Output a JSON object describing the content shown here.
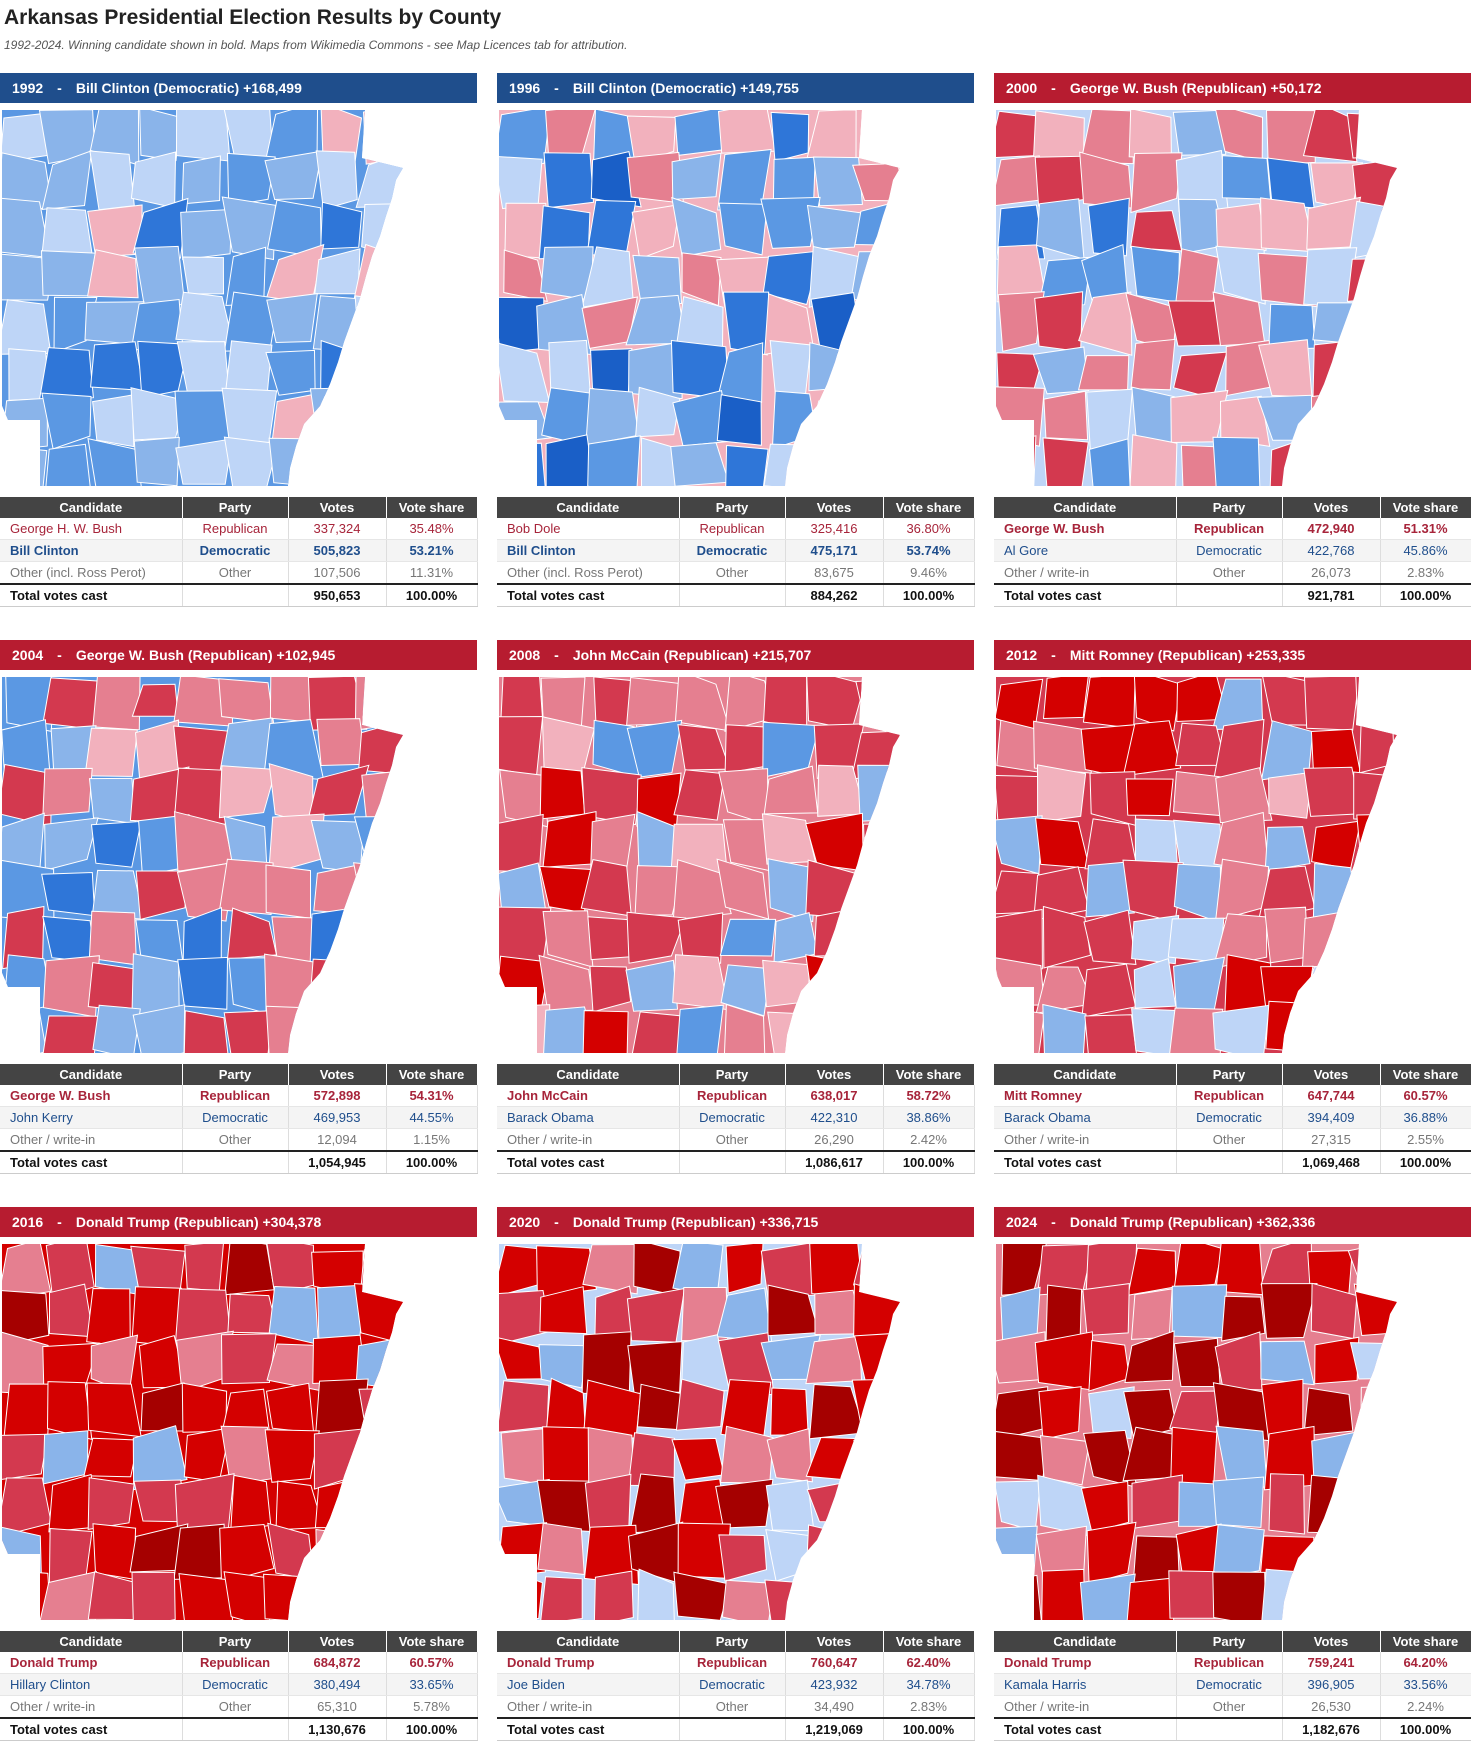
{
  "header": {
    "title": "Arkansas Presidential Election Results by County",
    "subtitle": "1992-2024. Winning candidate shown in bold. Maps from Wikimedia Commons - see Map Licences tab for attribution."
  },
  "table_headers": {
    "candidate": "Candidate",
    "party": "Party",
    "votes": "Votes",
    "share": "Vote share"
  },
  "colors": {
    "dem_banner": "#1f4e8c",
    "rep_banner": "#b71c30",
    "d1": "#bed5f7",
    "d2": "#8ab4ea",
    "d3": "#5b98e3",
    "d4": "#2f76d8",
    "d5": "#1a5fc7",
    "r1": "#f2b1bd",
    "r2": "#e57f90",
    "r3": "#d3394f",
    "r4": "#d40000",
    "r5": "#a50000"
  },
  "elections": [
    {
      "year": "1992",
      "winner": "Bill Clinton (Democratic)",
      "margin": "+168,499",
      "party": "dem",
      "map_weights": {
        "d1": 3,
        "d2": 3,
        "d3": 2,
        "d4": 1,
        "d5": 0,
        "r1": 1,
        "r2": 0,
        "r3": 0,
        "r4": 0,
        "r5": 0
      },
      "rows": [
        {
          "candidate": "George H. W. Bush",
          "party": "Republican",
          "votes": "337,324",
          "share": "35.48%",
          "kind": "rep",
          "win": false
        },
        {
          "candidate": "Bill Clinton",
          "party": "Democratic",
          "votes": "505,823",
          "share": "53.21%",
          "kind": "dem",
          "win": true
        },
        {
          "candidate": "Other (incl. Ross Perot)",
          "party": "Other",
          "votes": "107,506",
          "share": "11.31%",
          "kind": "oth",
          "win": false
        }
      ],
      "total": {
        "label": "Total votes cast",
        "votes": "950,653",
        "share": "100.00%"
      }
    },
    {
      "year": "1996",
      "winner": "Bill Clinton (Democratic)",
      "margin": "+149,755",
      "party": "dem",
      "map_weights": {
        "d1": 2,
        "d2": 3,
        "d3": 3,
        "d4": 2,
        "d5": 1,
        "r1": 1,
        "r2": 1,
        "r3": 0,
        "r4": 0,
        "r5": 0
      },
      "rows": [
        {
          "candidate": "Bob Dole",
          "party": "Republican",
          "votes": "325,416",
          "share": "36.80%",
          "kind": "rep",
          "win": false
        },
        {
          "candidate": "Bill Clinton",
          "party": "Democratic",
          "votes": "475,171",
          "share": "53.74%",
          "kind": "dem",
          "win": true
        },
        {
          "candidate": "Other (incl. Ross Perot)",
          "party": "Other",
          "votes": "83,675",
          "share": "9.46%",
          "kind": "oth",
          "win": false
        }
      ],
      "total": {
        "label": "Total votes cast",
        "votes": "884,262",
        "share": "100.00%"
      }
    },
    {
      "year": "2000",
      "winner": "George W. Bush (Republican)",
      "margin": "+50,172",
      "party": "rep",
      "map_weights": {
        "d1": 1,
        "d2": 2,
        "d3": 1,
        "d4": 1,
        "d5": 0,
        "r1": 2,
        "r2": 3,
        "r3": 3,
        "r4": 0,
        "r5": 0
      },
      "rows": [
        {
          "candidate": "George W. Bush",
          "party": "Republican",
          "votes": "472,940",
          "share": "51.31%",
          "kind": "rep",
          "win": true
        },
        {
          "candidate": "Al Gore",
          "party": "Democratic",
          "votes": "422,768",
          "share": "45.86%",
          "kind": "dem",
          "win": false
        },
        {
          "candidate": "Other / write-in",
          "party": "Other",
          "votes": "26,073",
          "share": "2.83%",
          "kind": "oth",
          "win": false
        }
      ],
      "total": {
        "label": "Total votes cast",
        "votes": "921,781",
        "share": "100.00%"
      }
    },
    {
      "year": "2004",
      "winner": "George W. Bush (Republican)",
      "margin": "+102,945",
      "party": "rep",
      "map_weights": {
        "d1": 0,
        "d2": 2,
        "d3": 2,
        "d4": 1,
        "d5": 0,
        "r1": 1,
        "r2": 4,
        "r3": 3,
        "r4": 0,
        "r5": 0
      },
      "rows": [
        {
          "candidate": "George W. Bush",
          "party": "Republican",
          "votes": "572,898",
          "share": "54.31%",
          "kind": "rep",
          "win": true
        },
        {
          "candidate": "John Kerry",
          "party": "Democratic",
          "votes": "469,953",
          "share": "44.55%",
          "kind": "dem",
          "win": false
        },
        {
          "candidate": "Other / write-in",
          "party": "Other",
          "votes": "12,094",
          "share": "1.15%",
          "kind": "oth",
          "win": false
        }
      ],
      "total": {
        "label": "Total votes cast",
        "votes": "1,054,945",
        "share": "100.00%"
      }
    },
    {
      "year": "2008",
      "winner": "John McCain (Republican)",
      "margin": "+215,707",
      "party": "rep",
      "map_weights": {
        "d1": 0,
        "d2": 2,
        "d3": 1,
        "d4": 0,
        "d5": 0,
        "r1": 1,
        "r2": 3,
        "r3": 5,
        "r4": 2,
        "r5": 0
      },
      "rows": [
        {
          "candidate": "John McCain",
          "party": "Republican",
          "votes": "638,017",
          "share": "58.72%",
          "kind": "rep",
          "win": true
        },
        {
          "candidate": "Barack Obama",
          "party": "Democratic",
          "votes": "422,310",
          "share": "38.86%",
          "kind": "dem",
          "win": false
        },
        {
          "candidate": "Other / write-in",
          "party": "Other",
          "votes": "26,290",
          "share": "2.42%",
          "kind": "oth",
          "win": false
        }
      ],
      "total": {
        "label": "Total votes cast",
        "votes": "1,086,617",
        "share": "100.00%"
      }
    },
    {
      "year": "2012",
      "winner": "Mitt Romney (Republican)",
      "margin": "+253,335",
      "party": "rep",
      "map_weights": {
        "d1": 1,
        "d2": 2,
        "d3": 1,
        "d4": 0,
        "d5": 0,
        "r1": 1,
        "r2": 2,
        "r3": 5,
        "r4": 3,
        "r5": 0
      },
      "rows": [
        {
          "candidate": "Mitt Romney",
          "party": "Republican",
          "votes": "647,744",
          "share": "60.57%",
          "kind": "rep",
          "win": true
        },
        {
          "candidate": "Barack Obama",
          "party": "Democratic",
          "votes": "394,409",
          "share": "36.88%",
          "kind": "dem",
          "win": false
        },
        {
          "candidate": "Other / write-in",
          "party": "Other",
          "votes": "27,315",
          "share": "2.55%",
          "kind": "oth",
          "win": false
        }
      ],
      "total": {
        "label": "Total votes cast",
        "votes": "1,069,468",
        "share": "100.00%"
      }
    },
    {
      "year": "2016",
      "winner": "Donald Trump (Republican)",
      "margin": "+304,378",
      "party": "rep",
      "map_weights": {
        "d1": 0,
        "d2": 2,
        "d3": 1,
        "d4": 0,
        "d5": 0,
        "r1": 0,
        "r2": 2,
        "r3": 4,
        "r4": 6,
        "r5": 1
      },
      "rows": [
        {
          "candidate": "Donald Trump",
          "party": "Republican",
          "votes": "684,872",
          "share": "60.57%",
          "kind": "rep",
          "win": true
        },
        {
          "candidate": "Hillary Clinton",
          "party": "Democratic",
          "votes": "380,494",
          "share": "33.65%",
          "kind": "dem",
          "win": false
        },
        {
          "candidate": "Other / write-in",
          "party": "Other",
          "votes": "65,310",
          "share": "5.78%",
          "kind": "oth",
          "win": false
        }
      ],
      "total": {
        "label": "Total votes cast",
        "votes": "1,130,676",
        "share": "100.00%"
      }
    },
    {
      "year": "2020",
      "winner": "Donald Trump (Republican)",
      "margin": "+336,715",
      "party": "rep",
      "map_weights": {
        "d1": 1,
        "d2": 2,
        "d3": 0,
        "d4": 0,
        "d5": 0,
        "r1": 0,
        "r2": 2,
        "r3": 4,
        "r4": 6,
        "r5": 2
      },
      "rows": [
        {
          "candidate": "Donald Trump",
          "party": "Republican",
          "votes": "760,647",
          "share": "62.40%",
          "kind": "rep",
          "win": true
        },
        {
          "candidate": "Joe Biden",
          "party": "Democratic",
          "votes": "423,932",
          "share": "34.78%",
          "kind": "dem",
          "win": false
        },
        {
          "candidate": "Other / write-in",
          "party": "Other",
          "votes": "34,490",
          "share": "2.83%",
          "kind": "oth",
          "win": false
        }
      ],
      "total": {
        "label": "Total votes cast",
        "votes": "1,219,069",
        "share": "100.00%"
      }
    },
    {
      "year": "2024",
      "winner": "Donald Trump (Republican)",
      "margin": "+362,336",
      "party": "rep",
      "map_weights": {
        "d1": 1,
        "d2": 2,
        "d3": 0,
        "d4": 0,
        "d5": 0,
        "r1": 0,
        "r2": 1,
        "r3": 3,
        "r4": 6,
        "r5": 4
      },
      "rows": [
        {
          "candidate": "Donald Trump",
          "party": "Republican",
          "votes": "759,241",
          "share": "64.20%",
          "kind": "rep",
          "win": true
        },
        {
          "candidate": "Kamala Harris",
          "party": "Democratic",
          "votes": "396,905",
          "share": "33.56%",
          "kind": "dem",
          "win": false
        },
        {
          "candidate": "Other / write-in",
          "party": "Other",
          "votes": "26,530",
          "share": "2.24%",
          "kind": "oth",
          "win": false
        }
      ],
      "total": {
        "label": "Total votes cast",
        "votes": "1,182,676",
        "share": "100.00%"
      }
    }
  ]
}
